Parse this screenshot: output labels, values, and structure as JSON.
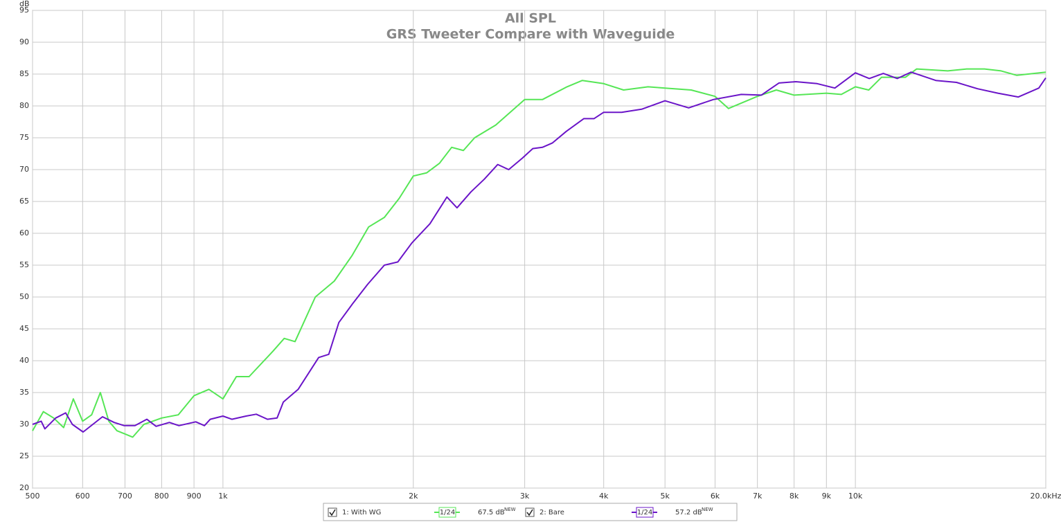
{
  "chart_data": {
    "type": "line",
    "title": "All SPL",
    "subtitle": "GRS Tweeter Compare with Waveguide",
    "y_label": "dB",
    "x_scale": "log",
    "grid": true,
    "xlim": [
      500,
      20000
    ],
    "xticks": [
      500,
      600,
      700,
      800,
      900,
      {
        "value": 1000,
        "label": "1k"
      },
      {
        "value": 2000,
        "label": "2k"
      },
      {
        "value": 3000,
        "label": "3k"
      },
      {
        "value": 4000,
        "label": "4k"
      },
      {
        "value": 5000,
        "label": "5k"
      },
      {
        "value": 6000,
        "label": "6k"
      },
      {
        "value": 7000,
        "label": "7k"
      },
      {
        "value": 8000,
        "label": "8k"
      },
      {
        "value": 9000,
        "label": "9k"
      },
      {
        "value": 10000,
        "label": "10k"
      },
      {
        "value": 20000,
        "label": "20.0kHz"
      }
    ],
    "ylim": [
      20,
      95
    ],
    "yticks": [
      20,
      25,
      30,
      35,
      40,
      45,
      50,
      55,
      60,
      65,
      70,
      75,
      80,
      85,
      90,
      95
    ],
    "series": [
      {
        "name": "1: With WG",
        "color": "#55e655",
        "smoothing": "1/24",
        "level": "67.5 dB",
        "level_tag": "NEW",
        "x": [
          500,
          520,
          540,
          560,
          580,
          600,
          620,
          640,
          660,
          680,
          700,
          720,
          750,
          800,
          850,
          900,
          950,
          1000,
          1050,
          1100,
          1200,
          1250,
          1300,
          1400,
          1500,
          1600,
          1700,
          1800,
          1900,
          2000,
          2100,
          2200,
          2300,
          2400,
          2500,
          2700,
          3000,
          3200,
          3500,
          3700,
          4000,
          4300,
          4700,
          5000,
          5500,
          6000,
          6300,
          7000,
          7500,
          8000,
          9000,
          9500,
          10000,
          10500,
          11000,
          12000,
          12500,
          14000,
          15000,
          16000,
          17000,
          18000,
          20000
        ],
        "values": [
          29,
          32,
          31,
          29.5,
          34,
          30.5,
          31.5,
          35,
          30.5,
          29,
          28.5,
          28,
          30,
          31,
          31.5,
          34.5,
          35.5,
          34,
          37.5,
          37.5,
          41.5,
          43.5,
          43,
          50,
          52.5,
          56.5,
          61,
          62.5,
          65.5,
          69,
          69.5,
          71,
          73.5,
          73,
          75,
          77,
          81,
          81,
          83,
          84,
          83.5,
          82.5,
          83,
          82.8,
          82.5,
          81.5,
          79.6,
          81.5,
          82.5,
          81.7,
          82,
          81.8,
          83,
          82.5,
          84.5,
          84.5,
          85.8,
          85.5,
          85.8,
          85.8,
          85.5,
          84.8,
          85.3
        ]
      },
      {
        "name": "2: Bare",
        "color": "#6a14c8",
        "smoothing": "1/24",
        "level": "57.2 dB",
        "level_tag": "NEW",
        "x": [
          500,
          516,
          523,
          544,
          564,
          578,
          601,
          645,
          673,
          698,
          726,
          758,
          784,
          823,
          852,
          906,
          935,
          955,
          1000,
          1033,
          1088,
          1129,
          1176,
          1218,
          1246,
          1315,
          1365,
          1417,
          1470,
          1525,
          1605,
          1694,
          1800,
          1890,
          1990,
          2125,
          2260,
          2345,
          2467,
          2590,
          2720,
          2830,
          2975,
          3090,
          3200,
          3320,
          3490,
          3720,
          3860,
          4000,
          4270,
          4600,
          5000,
          5450,
          5960,
          6600,
          7100,
          7570,
          8050,
          8700,
          9280,
          10000,
          10520,
          11070,
          11650,
          12250,
          13400,
          14450,
          15600,
          16800,
          18100,
          19500,
          20000
        ],
        "values": [
          30,
          30.5,
          29.3,
          31,
          31.8,
          30,
          28.8,
          31.2,
          30.3,
          29.8,
          29.8,
          30.8,
          29.7,
          30.3,
          29.8,
          30.4,
          29.8,
          30.8,
          31.3,
          30.8,
          31.3,
          31.6,
          30.8,
          31,
          33.5,
          35.5,
          38,
          40.5,
          41,
          46,
          49,
          52,
          55,
          55.5,
          58.5,
          61.5,
          65.7,
          64,
          66.5,
          68.5,
          70.8,
          70,
          71.8,
          73.3,
          73.5,
          74.2,
          76,
          78,
          78,
          79,
          79,
          79.5,
          80.8,
          79.7,
          81,
          81.8,
          81.7,
          83.6,
          83.8,
          83.5,
          82.8,
          85.2,
          84.3,
          85.1,
          84.3,
          85.3,
          84,
          83.7,
          82.7,
          82,
          81.4,
          82.8,
          84.4
        ]
      }
    ]
  }
}
